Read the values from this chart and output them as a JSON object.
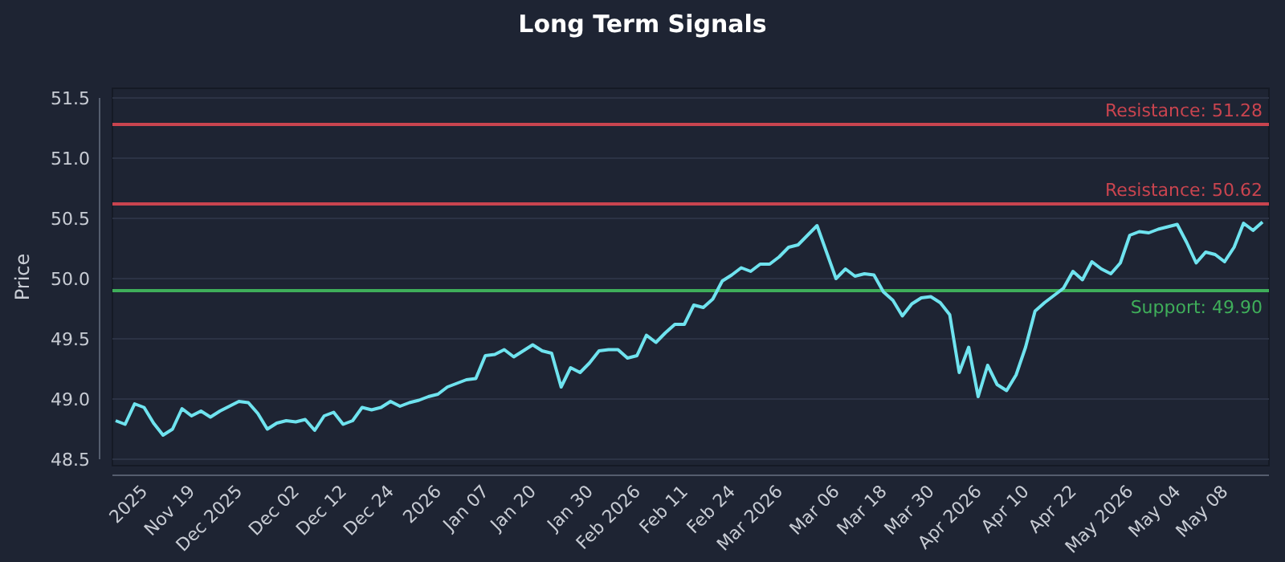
{
  "chart_data": {
    "type": "line",
    "title": "Long Term Signals",
    "ylabel": "Price",
    "categories": [
      null,
      null,
      null,
      "2025",
      null,
      null,
      null,
      null,
      "Nov 19",
      null,
      null,
      null,
      null,
      "Dec 2025",
      null,
      null,
      null,
      null,
      null,
      "Dec 02",
      null,
      null,
      null,
      null,
      "Dec 12",
      null,
      null,
      null,
      null,
      "Dec 24",
      null,
      null,
      null,
      null,
      "2026",
      null,
      null,
      null,
      null,
      "Jan 07",
      null,
      null,
      null,
      null,
      "Jan 20",
      null,
      null,
      null,
      null,
      null,
      "Jan 30",
      null,
      null,
      null,
      null,
      "Feb 2026",
      null,
      null,
      null,
      null,
      "Feb 11",
      null,
      null,
      null,
      null,
      "Feb 24",
      null,
      null,
      null,
      null,
      "Mar 2026",
      null,
      null,
      null,
      null,
      null,
      "Mar 06",
      null,
      null,
      null,
      null,
      "Mar 18",
      null,
      null,
      null,
      null,
      "Mar 30",
      null,
      null,
      null,
      null,
      "Apr 2026",
      null,
      null,
      null,
      null,
      "Apr 10",
      null,
      null,
      null,
      null,
      "Apr 22",
      null,
      null,
      null,
      null,
      null,
      "May 2026",
      null,
      null,
      null,
      null,
      "May 04",
      null,
      null,
      null,
      null,
      "May 08",
      null,
      null,
      null,
      null
    ],
    "series": [
      {
        "color": "#6fe3ef",
        "values": [
          48.82,
          48.79,
          48.96,
          48.93,
          48.8,
          48.7,
          48.75,
          48.92,
          48.86,
          48.9,
          48.85,
          48.9,
          48.94,
          48.98,
          48.97,
          48.88,
          48.75,
          48.8,
          48.82,
          48.81,
          48.83,
          48.74,
          48.86,
          48.89,
          48.79,
          48.82,
          48.93,
          48.91,
          48.93,
          48.98,
          48.94,
          48.97,
          48.99,
          49.02,
          49.04,
          49.1,
          49.13,
          49.16,
          49.17,
          49.36,
          49.37,
          49.41,
          49.35,
          49.4,
          49.45,
          49.4,
          49.38,
          49.1,
          49.26,
          49.22,
          49.3,
          49.4,
          49.41,
          49.41,
          49.34,
          49.36,
          49.53,
          49.47,
          49.55,
          49.62,
          49.62,
          49.78,
          49.76,
          49.83,
          49.98,
          50.03,
          50.09,
          50.06,
          50.12,
          50.12,
          50.18,
          50.26,
          50.28,
          50.36,
          50.44,
          50.22,
          50.0,
          50.08,
          50.02,
          50.04,
          50.03,
          49.89,
          49.82,
          49.69,
          49.79,
          49.84,
          49.85,
          49.8,
          49.7,
          49.22,
          49.43,
          49.02,
          49.28,
          49.12,
          49.07,
          49.2,
          49.43,
          49.73,
          49.8,
          49.86,
          49.92,
          50.06,
          49.99,
          50.14,
          50.08,
          50.04,
          50.13,
          50.36,
          50.39,
          50.38,
          50.41,
          50.43,
          50.45,
          50.3,
          50.13,
          50.22,
          50.2,
          50.14,
          50.26,
          50.46,
          50.4,
          50.47
        ]
      }
    ],
    "ylim": [
      48.5,
      51.5
    ],
    "yticks": [
      {
        "value": 48.5,
        "label": "48.5"
      },
      {
        "value": 49,
        "label": "49.0"
      },
      {
        "value": 49.5,
        "label": "49.5"
      },
      {
        "value": 50,
        "label": "50.0"
      },
      {
        "value": 50.5,
        "label": "50.5"
      },
      {
        "value": 51,
        "label": "51.0"
      },
      {
        "value": 51.5,
        "label": "51.5"
      }
    ],
    "grid": "y",
    "ref_lines": [
      {
        "axis": "y",
        "value": 51.28,
        "label": "Resistance: 51.28",
        "color": "#c9444f"
      },
      {
        "axis": "y",
        "value": 50.62,
        "label": "Resistance: 50.62",
        "color": "#c9444f"
      },
      {
        "axis": "y",
        "value": 49.9,
        "label": "Support: 49.90",
        "color": "#3fae5a"
      }
    ]
  }
}
